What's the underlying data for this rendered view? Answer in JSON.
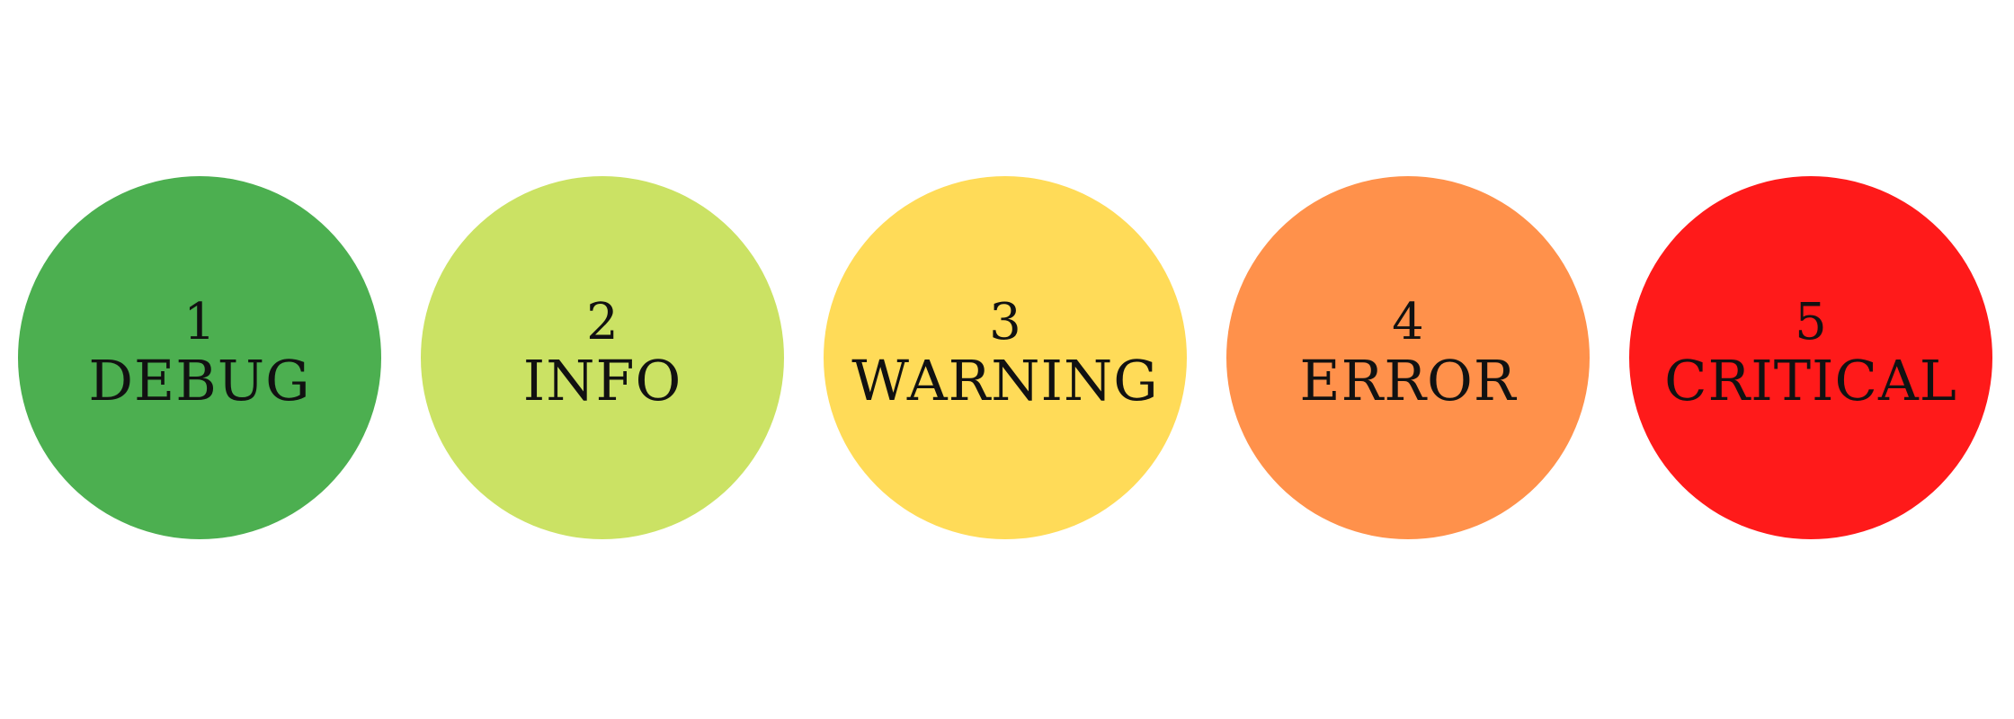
{
  "levels": [
    {
      "number": "1",
      "name": "DEBUG",
      "color": "#4caf50"
    },
    {
      "number": "2",
      "name": "INFO",
      "color": "#cbe264"
    },
    {
      "number": "3",
      "name": "WARNING",
      "color": "#ffdb58"
    },
    {
      "number": "4",
      "name": "ERROR",
      "color": "#ff914b"
    },
    {
      "number": "5",
      "name": "CRITICAL",
      "color": "#ff1a1a"
    }
  ]
}
